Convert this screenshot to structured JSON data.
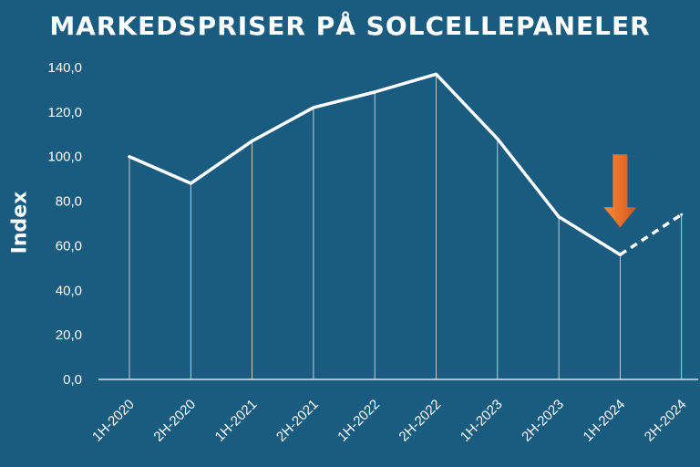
{
  "chart_data": {
    "type": "line",
    "title": "MARKEDSPRISER PÅ SOLCELLEPANELER",
    "xlabel": "",
    "ylabel": "Index",
    "categories": [
      "1H-2020",
      "2H-2020",
      "1H-2021",
      "2H-2021",
      "1H-2022",
      "2H-2022",
      "1H-2023",
      "2H-2023",
      "1H-2024",
      "2H-2024"
    ],
    "series": [
      {
        "values": [
          100,
          88,
          107,
          122,
          129,
          137,
          108,
          73,
          56,
          74
        ],
        "dashed_from_index": 8,
        "color": "#ffffff"
      }
    ],
    "ylim": [
      0,
      140
    ],
    "yticks": [
      "0,0",
      "20,0",
      "40,0",
      "60,0",
      "80,0",
      "100,0",
      "120,0",
      "140,0"
    ],
    "ytick_values": [
      0,
      20,
      40,
      60,
      80,
      100,
      120,
      140
    ],
    "grid": false,
    "drop_lines": true,
    "annotation": {
      "type": "arrow-down",
      "category_index": 8,
      "color": "#e8702a"
    },
    "background_color": "#1a5c80"
  }
}
